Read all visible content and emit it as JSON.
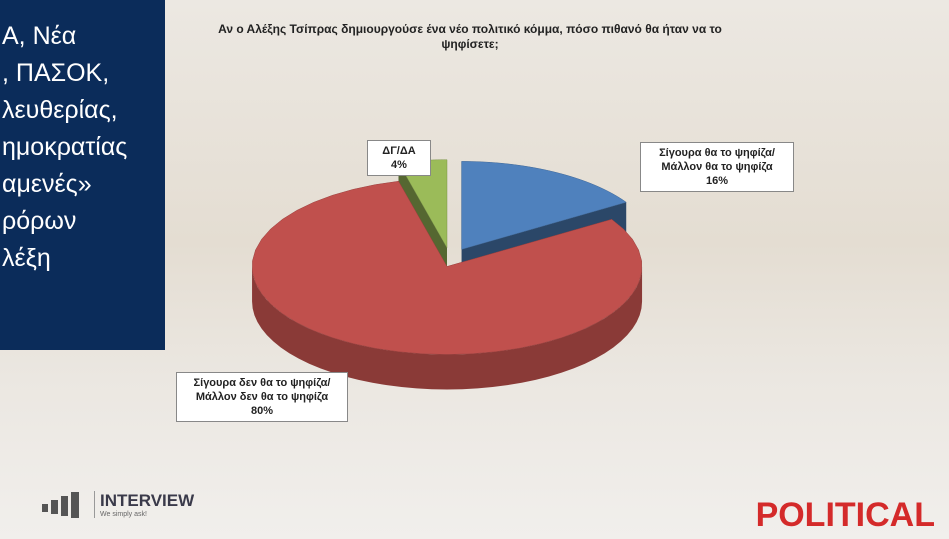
{
  "caption_lines": [
    "Α, Νέα",
    ", ΠΑΣΟΚ,",
    "λευθερίας,",
    "ημοκρατίας",
    "αμενές»",
    "ρόρων",
    "λέξη"
  ],
  "logo_left": {
    "name": "INTERVIEW",
    "slogan": "We simply ask!"
  },
  "logo_right": "POLITICAL",
  "chart_data": {
    "type": "pie3d",
    "title": "Αν ο Αλέξης Τσίπρας δημιουργούσε ένα νέο πολιτικό κόμμα, πόσο πιθανό θα ήταν να το ψηφίσετε;",
    "categories": [
      "Σίγουρα θα το ψηφίζα/Μάλλον θα το ψηφίζα",
      "Σίγουρα δεν θα το ψηφίζα/Μάλλον δεν θα το ψηφίζα",
      "ΔΓ/ΔΑ"
    ],
    "values": [
      16,
      80,
      4
    ],
    "value_labels": [
      "16%",
      "80%",
      "4%"
    ],
    "colors": [
      "#4f81bd",
      "#c0504d",
      "#9bbb59"
    ]
  }
}
